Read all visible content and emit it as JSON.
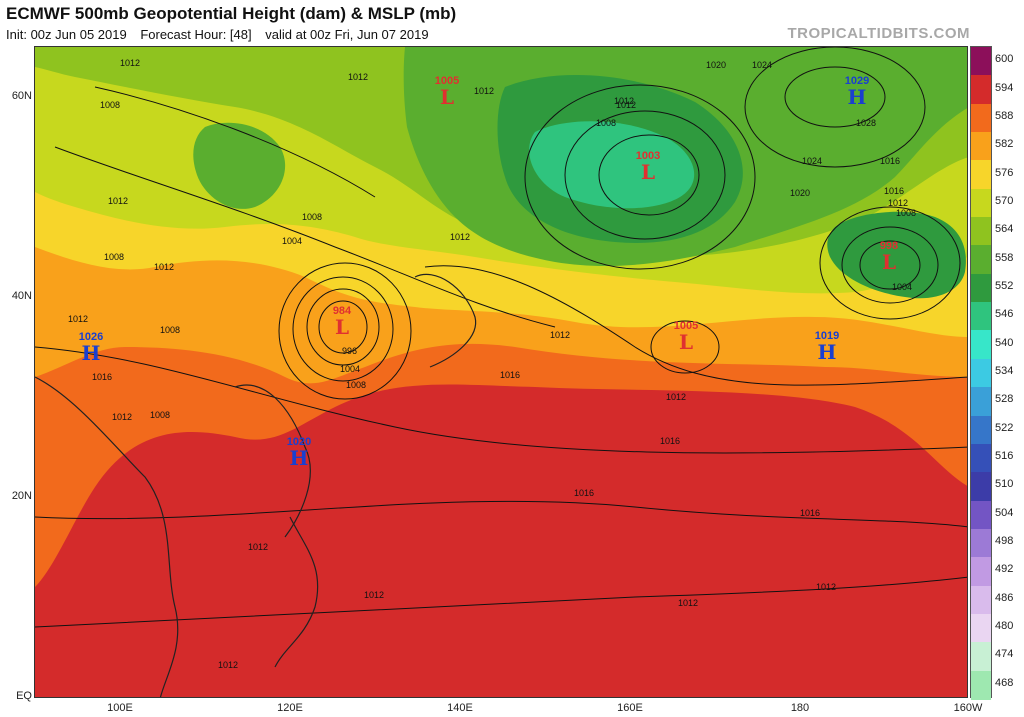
{
  "header": {
    "title": "ECMWF 500mb Geopotential Height (dam) & MSLP (mb)",
    "init": "Init: 00z Jun 05 2019",
    "forecast_hour": "Forecast Hour: [48]",
    "valid": "valid at 00z Fri, Jun 07 2019",
    "brand": "TROPICALTIDBITS.COM"
  },
  "axes": {
    "lat_labels": [
      "60N",
      "40N",
      "20N",
      "EQ"
    ],
    "lon_labels": [
      "100E",
      "120E",
      "140E",
      "160E",
      "180",
      "160W"
    ]
  },
  "colorbar": {
    "levels": [
      "600",
      "594",
      "588",
      "582",
      "576",
      "570",
      "564",
      "558",
      "552",
      "546",
      "540",
      "534",
      "528",
      "522",
      "516",
      "510",
      "504",
      "498",
      "492",
      "486",
      "480",
      "474",
      "468"
    ],
    "colors": [
      "#8c0f5a",
      "#d42b2b",
      "#f26a1c",
      "#f9a11b",
      "#f7d52a",
      "#c7d81e",
      "#8fc31f",
      "#5aae2f",
      "#2f9a3e",
      "#2fc47e",
      "#37e6c9",
      "#3ccae3",
      "#3aa0d8",
      "#3676c9",
      "#3550b8",
      "#3c3ca8",
      "#7355c4",
      "#9c7ad6",
      "#c19ae3",
      "#d9bbec",
      "#ead6f2",
      "#c8f0d4",
      "#9ee8b0"
    ]
  },
  "systems": [
    {
      "type": "L",
      "pressure": "1005"
    },
    {
      "type": "L",
      "pressure": "1003"
    },
    {
      "type": "H",
      "pressure": "1029"
    },
    {
      "type": "L",
      "pressure": "998"
    },
    {
      "type": "L",
      "pressure": "984"
    },
    {
      "type": "L",
      "pressure": "1005"
    },
    {
      "type": "H",
      "pressure": "1019"
    },
    {
      "type": "H",
      "pressure": "1026"
    },
    {
      "type": "H",
      "pressure": "1020"
    }
  ],
  "isobar_labels": [
    "1012",
    "1012",
    "1008",
    "1012",
    "1008",
    "1004",
    "1008",
    "1012",
    "1012",
    "1008",
    "1008",
    "1012",
    "1016",
    "1012",
    "1012",
    "1016",
    "1016",
    "1012",
    "1012",
    "1012",
    "1012",
    "1012",
    "1016",
    "1016",
    "1024",
    "1028",
    "1020",
    "1016",
    "1012",
    "1008",
    "1004",
    "1012",
    "1008",
    "996",
    "1004",
    "1008",
    "1016",
    "1012",
    "1020",
    "1024",
    "1012",
    "1012"
  ]
}
